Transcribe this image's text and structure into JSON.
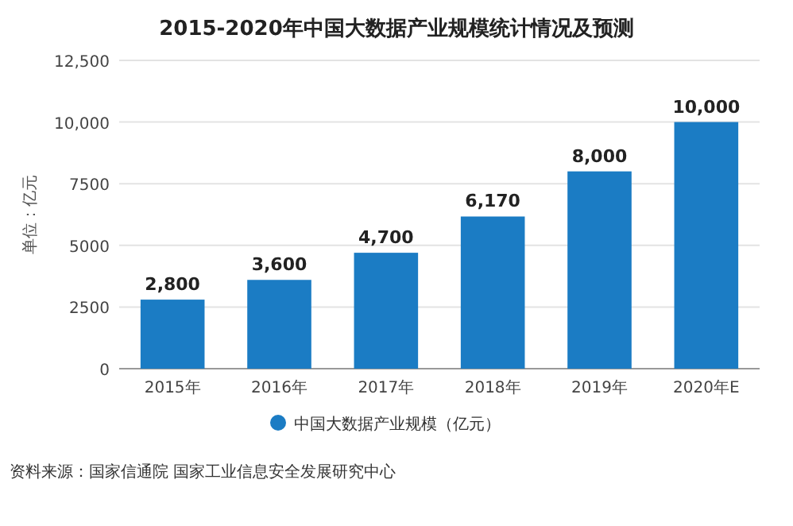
{
  "chart_data": {
    "type": "bar",
    "title": "2015-2020年中国大数据产业规模统计情况及预测",
    "ylabel": "单位：亿元",
    "categories": [
      "2015年",
      "2016年",
      "2017年",
      "2018年",
      "2019年",
      "2020年E"
    ],
    "series": [
      {
        "name": "中国大数据产业规模（亿元）",
        "color": "#1b7cc4",
        "values": [
          2800,
          3600,
          4700,
          6170,
          8000,
          10000
        ],
        "value_labels": [
          "2,800",
          "3,600",
          "4,700",
          "6,170",
          "8,000",
          "10,000"
        ]
      }
    ],
    "ylim": [
      0,
      12500
    ],
    "yticks": [
      0,
      2500,
      5000,
      7500,
      {
        "value": 10000,
        "label": "10,000"
      },
      {
        "value": 12500,
        "label": "12,500"
      }
    ],
    "grid": "y",
    "legend": "bottom",
    "annotations": [
      "资料来源：国家信通院 国家工业信息安全发展研究中心"
    ]
  }
}
